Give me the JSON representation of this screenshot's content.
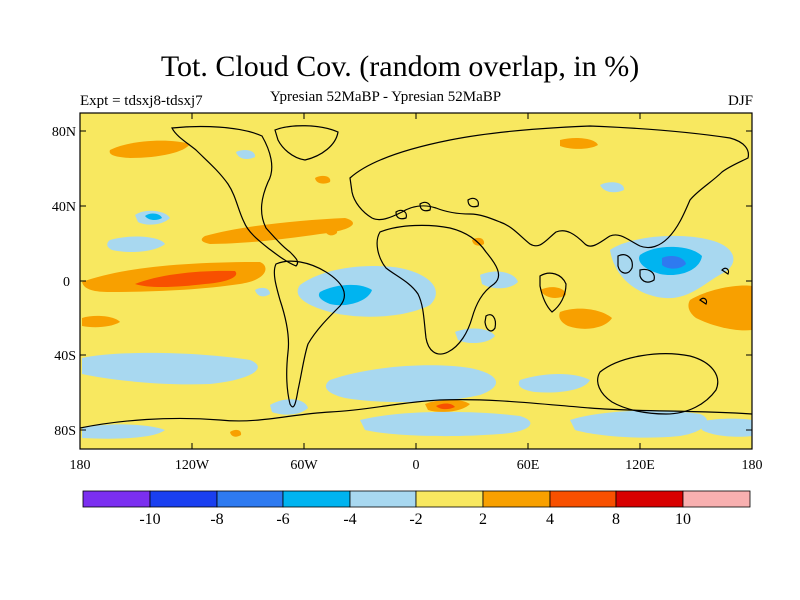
{
  "header": {
    "title": "Tot. Cloud Cov. (random overlap, in %)",
    "experiment": "Expt = tdsxj8-tdsxj7",
    "comparison": "Ypresian  52MaBP - Ypresian  52MaBP",
    "season": "DJF"
  },
  "axes": {
    "lat_labels": [
      "80N",
      "40N",
      "0",
      "40S",
      "80S"
    ],
    "lon_labels": [
      "180",
      "120W",
      "60W",
      "0",
      "60E",
      "120E",
      "180"
    ]
  },
  "colorbar": {
    "colors": [
      "#7b2ff0",
      "#1a3ff0",
      "#2e7af0",
      "#00b4f0",
      "#a8d8f0",
      "#f8e860",
      "#f8a000",
      "#f85000",
      "#d80000",
      "#f8b0b0"
    ],
    "labels": [
      "-10",
      "-8",
      "-6",
      "-4",
      "-2",
      "2",
      "4",
      "8",
      "10"
    ]
  },
  "colors": {
    "ocean_background": "#f8e860",
    "coastline": "#000000"
  }
}
